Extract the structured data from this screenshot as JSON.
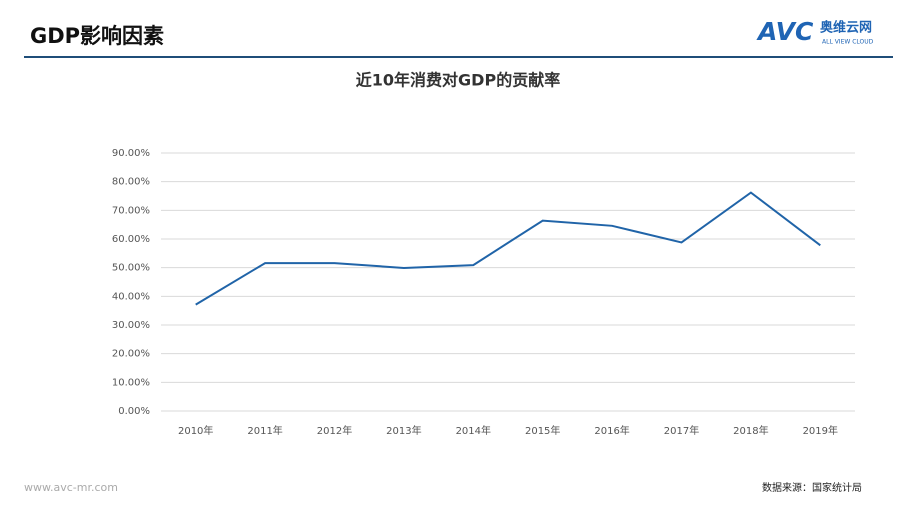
{
  "header": {
    "title": "GDP影响因素",
    "logo": {
      "mark": "AVC",
      "name": "奥维云网",
      "tagline": "ALL VIEW CLOUD"
    }
  },
  "chart_data": {
    "type": "line",
    "title": "近10年消费对GDP的贡献率",
    "categories": [
      "2010年",
      "2011年",
      "2012年",
      "2013年",
      "2014年",
      "2015年",
      "2016年",
      "2017年",
      "2018年",
      "2019年"
    ],
    "series": [
      {
        "color": "#2064a8",
        "values": [
          37.1,
          51.6,
          51.6,
          49.9,
          50.9,
          66.4,
          64.6,
          58.8,
          76.2,
          57.8
        ]
      }
    ],
    "ylim": [
      0,
      90
    ],
    "yticks": [
      {
        "value": 0,
        "label": "0.00%"
      },
      {
        "value": 10,
        "label": "10.00%"
      },
      {
        "value": 20,
        "label": "20.00%"
      },
      {
        "value": 30,
        "label": "30.00%"
      },
      {
        "value": 40,
        "label": "40.00%"
      },
      {
        "value": 50,
        "label": "50.00%"
      },
      {
        "value": 60,
        "label": "60.00%"
      },
      {
        "value": 70,
        "label": "70.00%"
      },
      {
        "value": 80,
        "label": "80.00%"
      },
      {
        "value": 90,
        "label": "90.00%"
      }
    ],
    "grid": true
  },
  "footer": {
    "website": "www.avc-mr.com",
    "source": "数据来源：国家统计局"
  }
}
